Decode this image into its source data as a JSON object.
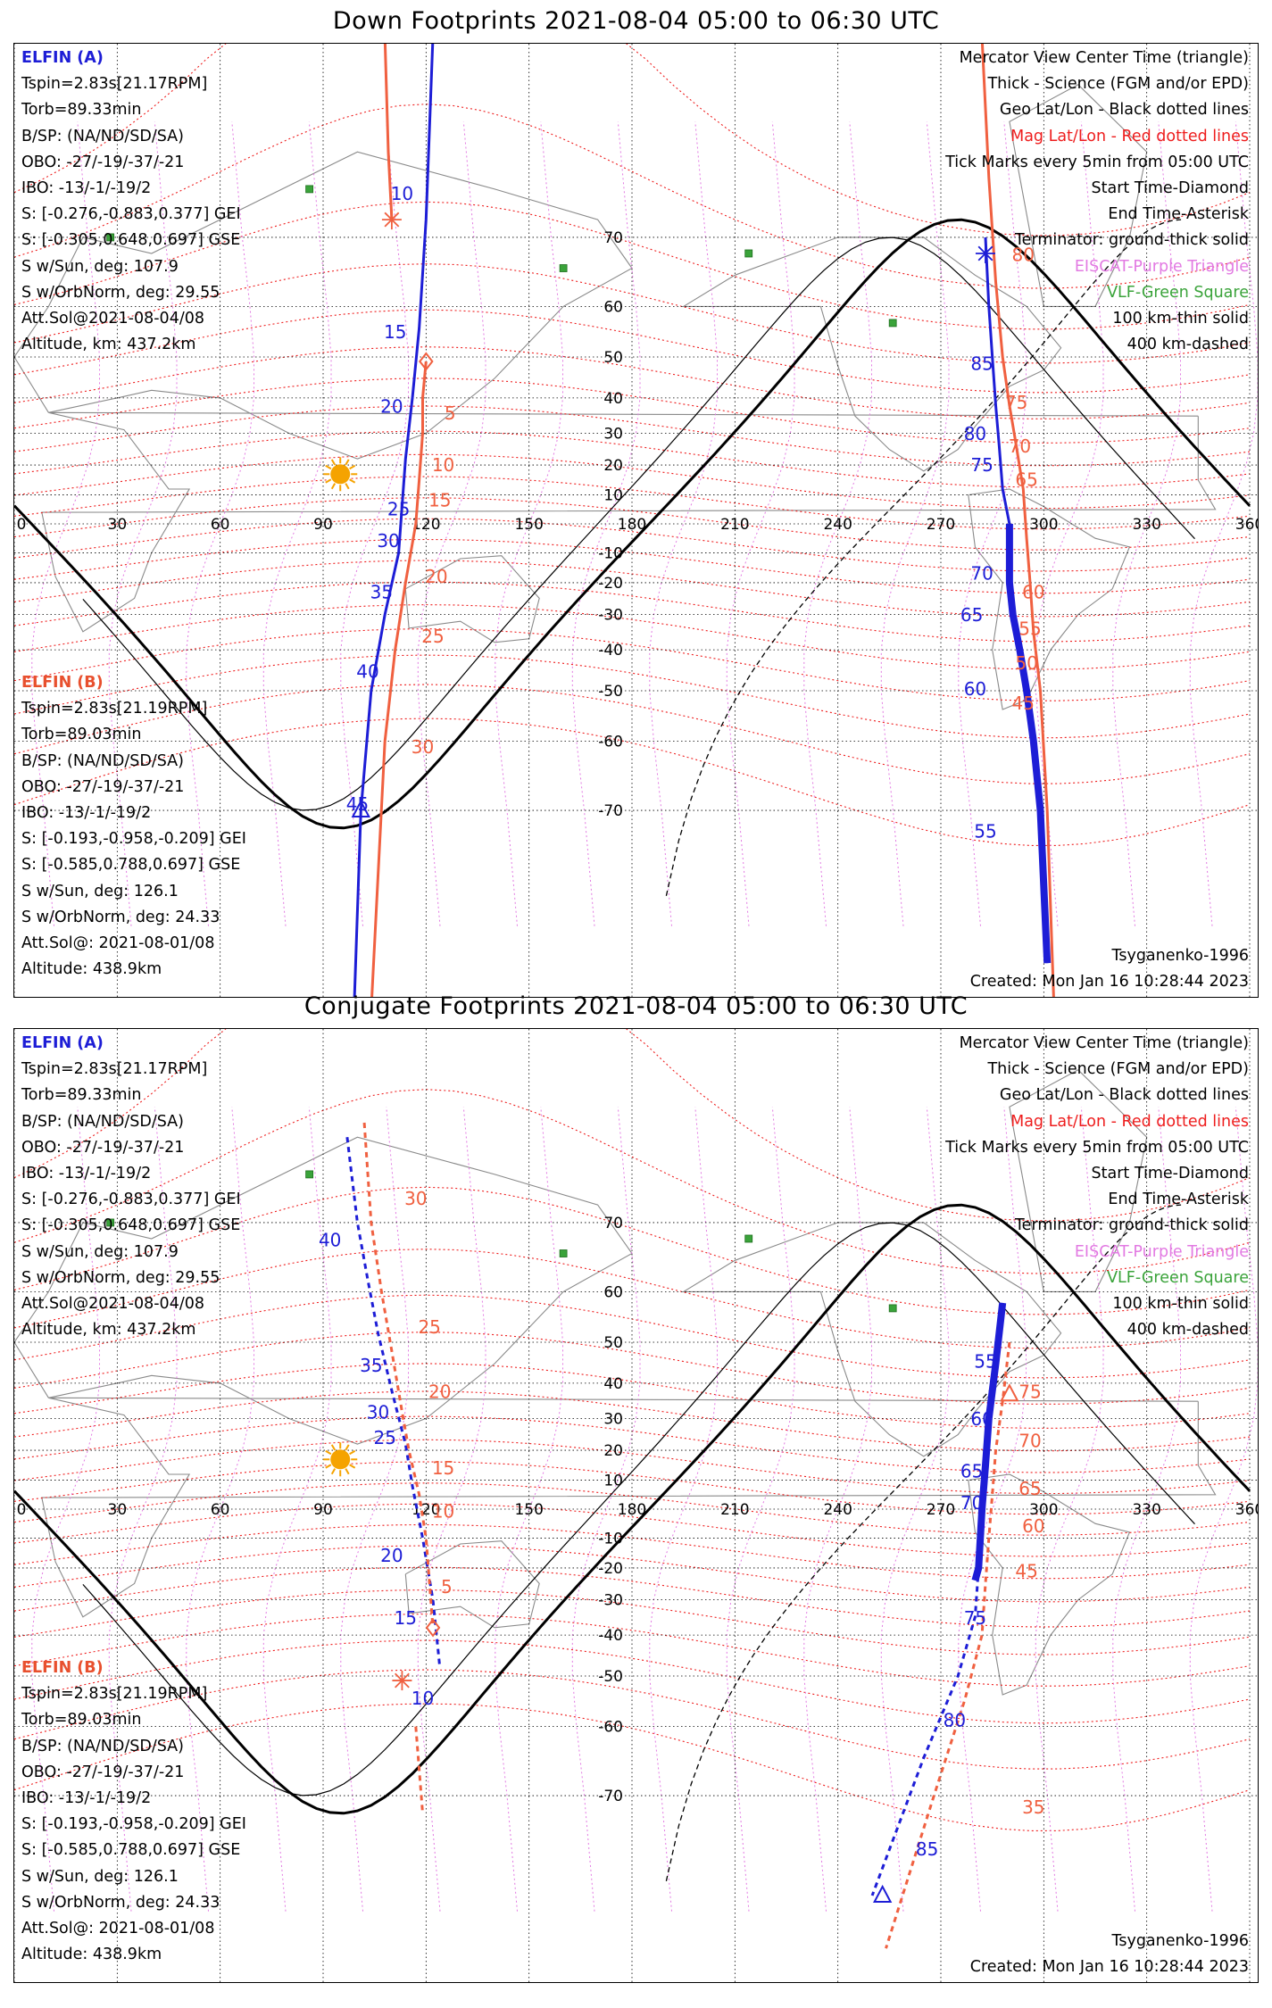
{
  "panels": [
    {
      "id": "down",
      "title": "Down Footprints 2021-08-04 05:00 to 06:30 UTC",
      "elfin_a": {
        "header": "ELFIN (A)",
        "lines": [
          "Tspin=2.83s[21.17RPM]",
          "Torb=89.33min",
          "B/SP: (NA/ND/SD/SA)",
          "OBO: -27/-19/-37/-21",
          "IBO: -13/-1/-19/2",
          "S: [-0.276,-0.883,0.377] GEI",
          "S: [-0.305,0.648,0.697] GSE",
          "S w/Sun, deg: 107.9",
          "S w/OrbNorm, deg: 29.55",
          "Att.Sol@2021-08-04/08",
          "Altitude, km: 437.2km"
        ]
      },
      "elfin_b": {
        "header": "ELFIN (B)",
        "lines": [
          "Tspin=2.83s[21.19RPM]",
          "Torb=89.03min",
          "B/SP: (NA/ND/SD/SA)",
          "OBO: -27/-19/-37/-21",
          "IBO: -13/-1/-19/2",
          "S: [-0.193,-0.958,-0.209] GEI",
          "S: [-0.585,0.788,0.697] GSE",
          "S w/Sun, deg: 126.1",
          "S w/OrbNorm, deg: 24.33",
          "Att.Sol@: 2021-08-01/08",
          "Altitude: 438.9km"
        ]
      },
      "legend": [
        {
          "text": "Mercator View Center Time (triangle)",
          "color": "#000000"
        },
        {
          "text": "Thick - Science (FGM and/or EPD)",
          "color": "#000000"
        },
        {
          "text": "Geo Lat/Lon - Black dotted lines",
          "color": "#000000"
        },
        {
          "text": "Mag Lat/Lon - Red dotted lines",
          "color": "#ee1d1d"
        },
        {
          "text": "Tick Marks every 5min from 05:00 UTC",
          "color": "#000000"
        },
        {
          "text": "Start Time-Diamond",
          "color": "#000000"
        },
        {
          "text": "End Time-Asterisk",
          "color": "#000000"
        },
        {
          "text": "Terminator: ground-thick solid",
          "color": "#000000"
        },
        {
          "text": "EISCAT-Purple Triangle",
          "color": "#e27ae2"
        },
        {
          "text": "VLF-Green Square",
          "color": "#3aa33a"
        },
        {
          "text": "100 km-thin solid",
          "color": "#000000"
        },
        {
          "text": "400 km-dashed",
          "color": "#000000"
        }
      ],
      "footer_model": "Tsyganenko-1996",
      "footer_created": "Created: Mon Jan 16 10:28:44 2023",
      "a_ticks": [
        "10",
        "15",
        "20",
        "25",
        "30",
        "35",
        "40",
        "45",
        "55",
        "60",
        "65",
        "70",
        "75",
        "80",
        "85"
      ],
      "b_ticks": [
        "5",
        "10",
        "15",
        "20",
        "25",
        "30",
        "45",
        "50",
        "55",
        "60",
        "65",
        "70",
        "75",
        "80"
      ]
    },
    {
      "id": "conjugate",
      "title": "Conjugate Footprints 2021-08-04 05:00 to 06:30 UTC",
      "elfin_a": {
        "header": "ELFIN (A)",
        "lines": [
          "Tspin=2.83s[21.17RPM]",
          "Torb=89.33min",
          "B/SP: (NA/ND/SD/SA)",
          "OBO: -27/-19/-37/-21",
          "IBO: -13/-1/-19/2",
          "S: [-0.276,-0.883,0.377] GEI",
          "S: [-0.305,0.648,0.697] GSE",
          "S w/Sun, deg: 107.9",
          "S w/OrbNorm, deg: 29.55",
          "Att.Sol@2021-08-04/08",
          "Altitude, km: 437.2km"
        ]
      },
      "elfin_b": {
        "header": "ELFIN (B)",
        "lines": [
          "Tspin=2.83s[21.19RPM]",
          "Torb=89.03min",
          "B/SP: (NA/ND/SD/SA)",
          "OBO: -27/-19/-37/-21",
          "IBO: -13/-1/-19/2",
          "S: [-0.193,-0.958,-0.209] GEI",
          "S: [-0.585,0.788,0.697] GSE",
          "S w/Sun, deg: 126.1",
          "S w/OrbNorm, deg: 24.33",
          "Att.Sol@: 2021-08-01/08",
          "Altitude: 438.9km"
        ]
      },
      "legend": [
        {
          "text": "Mercator View Center Time (triangle)",
          "color": "#000000"
        },
        {
          "text": "Thick - Science (FGM and/or EPD)",
          "color": "#000000"
        },
        {
          "text": "Geo Lat/Lon - Black dotted lines",
          "color": "#000000"
        },
        {
          "text": "Mag Lat/Lon - Red dotted lines",
          "color": "#ee1d1d"
        },
        {
          "text": "Tick Marks every 5min from 05:00 UTC",
          "color": "#000000"
        },
        {
          "text": "Start Time-Diamond",
          "color": "#000000"
        },
        {
          "text": "End Time-Asterisk",
          "color": "#000000"
        },
        {
          "text": "Terminator: ground-thick solid",
          "color": "#000000"
        },
        {
          "text": "EISCAT-Purple Triangle",
          "color": "#e27ae2"
        },
        {
          "text": "VLF-Green Square",
          "color": "#3aa33a"
        },
        {
          "text": "100 km-thin solid",
          "color": "#000000"
        },
        {
          "text": "400 km-dashed",
          "color": "#000000"
        }
      ],
      "footer_model": "Tsyganenko-1996",
      "footer_created": "Created: Mon Jan 16 10:28:44 2023",
      "a_ticks": [
        "10",
        "15",
        "20",
        "25",
        "30",
        "35",
        "40",
        "55",
        "60",
        "65",
        "70",
        "75",
        "80",
        "85"
      ],
      "b_ticks": [
        "5",
        "10",
        "15",
        "20",
        "25",
        "30",
        "35",
        "45",
        "60",
        "65",
        "70",
        "75"
      ]
    }
  ],
  "map": {
    "lon_labels": [
      "0",
      "30",
      "60",
      "90",
      "120",
      "150",
      "180",
      "210",
      "240",
      "270",
      "300",
      "330",
      "360"
    ],
    "lat_labels": [
      "70",
      "60",
      "50",
      "40",
      "30",
      "20",
      "10",
      "-10",
      "-20",
      "-30",
      "-40",
      "-50",
      "-60",
      "-70"
    ],
    "lat_values": [
      70,
      60,
      50,
      40,
      30,
      20,
      10,
      -10,
      -20,
      -30,
      -40,
      -50,
      -60,
      -70
    ],
    "lat_min": -82,
    "lat_max": 82,
    "colors": {
      "elfin_a": "#1d1dd6",
      "elfin_b": "#f06040",
      "mag_grid": "#ee1d1d",
      "geo_grid": "#000000",
      "eiscat": "#e27ae2",
      "vlf": "#3aa33a",
      "sun": "#f5a300"
    },
    "vlf_stations": [
      {
        "lon": 86,
        "lat": 75
      },
      {
        "lon": 160,
        "lat": 66
      },
      {
        "lon": 28,
        "lat": 70
      },
      {
        "lon": 256,
        "lat": 57
      },
      {
        "lon": 214,
        "lat": 68
      }
    ],
    "sun": {
      "lon": 95,
      "lat": 17
    }
  },
  "tracks": {
    "down": {
      "a_west": [
        [
          122,
          89
        ],
        [
          120,
          72
        ],
        [
          118,
          56
        ],
        [
          116,
          40
        ],
        [
          114,
          22
        ],
        [
          112,
          -10
        ],
        [
          108,
          -30
        ],
        [
          104,
          -50
        ],
        [
          101,
          -70
        ],
        [
          99,
          -87
        ]
      ],
      "a_east": [
        [
          283,
          70
        ],
        [
          284,
          60
        ],
        [
          285,
          50
        ],
        [
          286,
          38
        ],
        [
          287,
          26
        ],
        [
          288,
          12
        ],
        [
          290,
          0
        ],
        [
          290,
          -20
        ],
        [
          291,
          -30
        ],
        [
          293,
          -40
        ],
        [
          295,
          -50
        ],
        [
          297,
          -60
        ],
        [
          299,
          -70
        ],
        [
          301,
          -82
        ]
      ],
      "b_west": [
        [
          108,
          85
        ],
        [
          109,
          78
        ],
        [
          110,
          72
        ]
      ],
      "b_west2": [
        [
          120,
          49
        ],
        [
          119,
          40
        ],
        [
          119,
          30
        ],
        [
          118,
          15
        ],
        [
          117,
          0
        ],
        [
          114,
          -20
        ],
        [
          111,
          -40
        ],
        [
          108,
          -60
        ],
        [
          104,
          -88
        ]
      ],
      "b_east": [
        [
          282,
          88
        ],
        [
          284,
          76
        ],
        [
          286,
          64
        ],
        [
          288,
          50
        ],
        [
          290,
          38
        ],
        [
          292,
          26
        ],
        [
          294,
          12
        ],
        [
          295,
          -5
        ],
        [
          296,
          -20
        ],
        [
          297,
          -35
        ],
        [
          299,
          -50
        ],
        [
          301,
          -70
        ],
        [
          303,
          -84
        ]
      ],
      "a_thick": [
        [
          290,
          0
        ],
        [
          290,
          -20
        ],
        [
          291,
          -30
        ],
        [
          293,
          -40
        ],
        [
          295,
          -50
        ],
        [
          297,
          -60
        ],
        [
          299,
          -70
        ],
        [
          301,
          -82
        ]
      ],
      "a_start_tri": [
        101,
        -70
      ],
      "a_asterisk": [
        283,
        68
      ],
      "b_diamond": [
        120,
        49
      ],
      "b_asterisk": [
        110,
        72
      ],
      "a_tick_pos": [
        [
          113,
          74
        ],
        [
          111,
          54
        ],
        [
          110,
          36
        ],
        [
          112,
          3
        ],
        [
          109,
          -8
        ],
        [
          107,
          -25
        ],
        [
          103,
          -47
        ],
        [
          100,
          -70
        ],
        [
          283,
          -73
        ],
        [
          280,
          -51
        ],
        [
          279,
          -32
        ],
        [
          282,
          -19
        ],
        [
          282,
          18
        ],
        [
          280,
          28
        ],
        [
          282,
          47
        ]
      ],
      "b_tick_pos": [
        [
          127,
          34
        ],
        [
          125,
          18
        ],
        [
          124,
          6
        ],
        [
          123,
          -20
        ],
        [
          122,
          -38
        ],
        [
          119,
          -62
        ],
        [
          294,
          -54
        ],
        [
          295,
          -45
        ],
        [
          296,
          -36
        ],
        [
          297,
          -25
        ],
        [
          295,
          13
        ],
        [
          293,
          24
        ],
        [
          292,
          37
        ],
        [
          294,
          67
        ],
        [
          282,
          86
        ]
      ]
    },
    "conj": {
      "a_west": [
        [
          97,
          78
        ],
        [
          100,
          70
        ],
        [
          103,
          62
        ],
        [
          106,
          52
        ],
        [
          110,
          38
        ],
        [
          114,
          22
        ],
        [
          116,
          8
        ],
        [
          119,
          -10
        ],
        [
          122,
          -30
        ],
        [
          124,
          -48
        ]
      ],
      "b_west": [
        [
          102,
          79
        ],
        [
          104,
          70
        ],
        [
          107,
          60
        ],
        [
          110,
          48
        ],
        [
          113,
          32
        ],
        [
          115,
          20
        ],
        [
          118,
          5
        ],
        [
          120,
          -10
        ],
        [
          121,
          -25
        ],
        [
          122,
          -38
        ]
      ],
      "b_west2": [
        [
          117,
          -60
        ],
        [
          119,
          -72
        ]
      ],
      "a_east": [
        [
          288,
          58
        ],
        [
          286,
          45
        ],
        [
          284,
          30
        ],
        [
          283,
          15
        ],
        [
          282,
          0
        ],
        [
          281,
          -20
        ],
        [
          280,
          -35
        ],
        [
          275,
          -50
        ],
        [
          265,
          -65
        ],
        [
          250,
          -79
        ]
      ],
      "b_east": [
        [
          290,
          50
        ],
        [
          288,
          35
        ],
        [
          286,
          20
        ],
        [
          285,
          5
        ],
        [
          284,
          -10
        ],
        [
          283,
          -25
        ],
        [
          282,
          -40
        ],
        [
          277,
          -55
        ],
        [
          268,
          -70
        ],
        [
          254,
          -82
        ]
      ],
      "a_thick": [
        [
          288,
          58
        ],
        [
          286,
          45
        ],
        [
          284,
          30
        ],
        [
          283,
          15
        ],
        [
          282,
          0
        ],
        [
          281,
          -20
        ],
        [
          280,
          -24
        ]
      ],
      "a_start_tri": [
        253,
        -79
      ],
      "b_view_tri": [
        290,
        37
      ],
      "b_diamond": [
        122,
        -38
      ],
      "b_asterisk": [
        113,
        -51
      ],
      "a_tick_pos": [
        [
          119,
          -56
        ],
        [
          114,
          -37
        ],
        [
          110,
          -18
        ],
        [
          108,
          22
        ],
        [
          106,
          30
        ],
        [
          104,
          43
        ],
        [
          92,
          67
        ],
        [
          283,
          44
        ],
        [
          282,
          28
        ],
        [
          279,
          11
        ],
        [
          279,
          0
        ],
        [
          280,
          -37
        ],
        [
          274,
          -60
        ],
        [
          266,
          -76
        ]
      ],
      "b_tick_pos": [
        [
          126,
          -28
        ],
        [
          125,
          -3
        ],
        [
          125,
          12
        ],
        [
          124,
          36
        ],
        [
          121,
          52
        ],
        [
          117,
          72
        ],
        [
          297,
          -72
        ],
        [
          295,
          -23
        ],
        [
          297,
          -8
        ],
        [
          296,
          5
        ],
        [
          296,
          21
        ],
        [
          296,
          36
        ]
      ]
    }
  }
}
